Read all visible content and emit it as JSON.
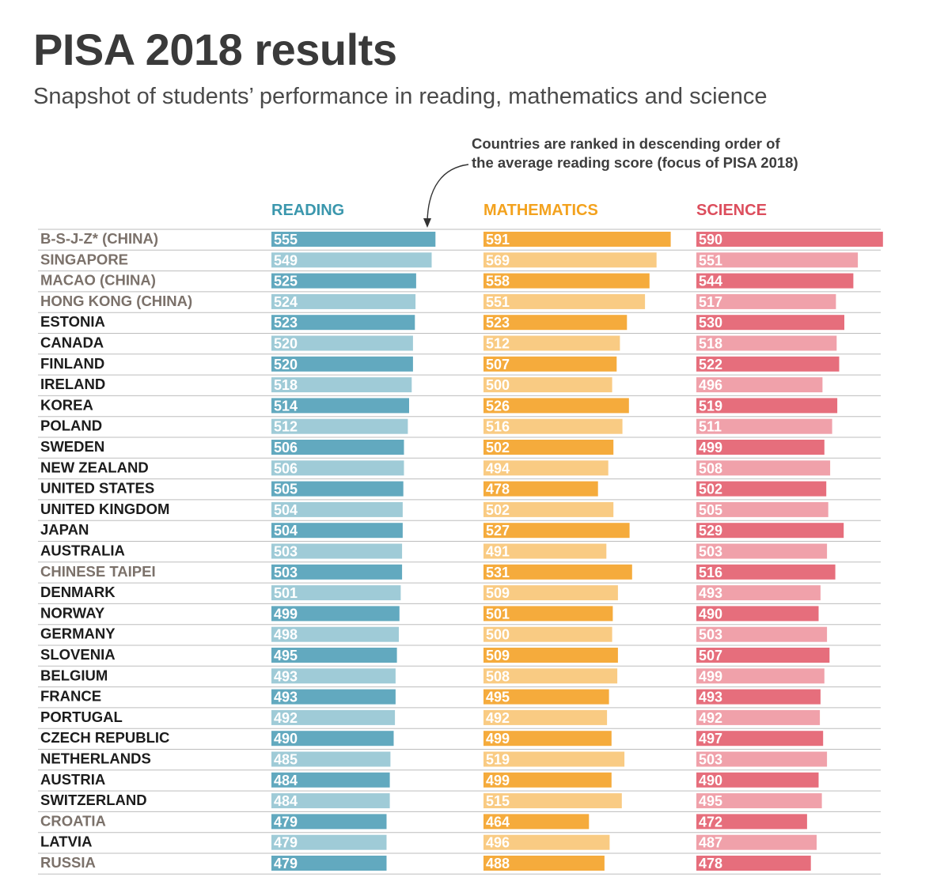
{
  "title": "PISA 2018 results",
  "subtitle": "Snapshot of students’ performance in reading, mathematics and science",
  "annotation": {
    "line1": "Countries are ranked in descending order of",
    "line2": "the average reading score (focus of PISA 2018)"
  },
  "colors": {
    "reading_dark": "#62a9bf",
    "reading_light": "#9fcbd7",
    "reading_header": "#3b97ad",
    "math_dark": "#f5ab3c",
    "math_light": "#f9cb83",
    "math_header": "#f3a21e",
    "science_dark": "#e66e7c",
    "science_light": "#f0a1aa",
    "science_header": "#dc4e5d",
    "country_black": "#1c1c1c",
    "country_gray": "#7b716a",
    "rule": "#bdbdbd"
  },
  "chart_data": {
    "type": "bar",
    "title": "PISA 2018 results",
    "subtitle": "Snapshot of students’ performance in reading, mathematics and science",
    "categories": [
      "B-S-J-Z* (CHINA)",
      "SINGAPORE",
      "MACAO (CHINA)",
      "HONG KONG (CHINA)",
      "ESTONIA",
      "CANADA",
      "FINLAND",
      "IRELAND",
      "KOREA",
      "POLAND",
      "SWEDEN",
      "NEW ZEALAND",
      "UNITED STATES",
      "UNITED KINGDOM",
      "JAPAN",
      "AUSTRALIA",
      "CHINESE TAIPEI",
      "DENMARK",
      "NORWAY",
      "GERMANY",
      "SLOVENIA",
      "BELGIUM",
      "FRANCE",
      "PORTUGAL",
      "CZECH REPUBLIC",
      "NETHERLANDS",
      "AUSTRIA",
      "SWITZERLAND",
      "CROATIA",
      "LATVIA",
      "RUSSIA"
    ],
    "gray_labels": [
      "B-S-J-Z* (CHINA)",
      "SINGAPORE",
      "MACAO (CHINA)",
      "HONG KONG (CHINA)",
      "CHINESE TAIPEI",
      "CROATIA",
      "RUSSIA"
    ],
    "series": [
      {
        "name": "READING",
        "values": [
          555,
          549,
          525,
          524,
          523,
          520,
          520,
          518,
          514,
          512,
          506,
          506,
          505,
          504,
          504,
          503,
          503,
          501,
          499,
          498,
          495,
          493,
          493,
          492,
          490,
          485,
          484,
          484,
          479,
          479,
          479
        ]
      },
      {
        "name": "MATHEMATICS",
        "values": [
          591,
          569,
          558,
          551,
          523,
          512,
          507,
          500,
          526,
          516,
          502,
          494,
          478,
          502,
          527,
          491,
          531,
          509,
          501,
          500,
          509,
          508,
          495,
          492,
          499,
          519,
          499,
          515,
          464,
          496,
          488
        ]
      },
      {
        "name": "SCIENCE",
        "values": [
          590,
          551,
          544,
          517,
          530,
          518,
          522,
          496,
          519,
          511,
          499,
          508,
          502,
          505,
          529,
          503,
          516,
          493,
          490,
          503,
          507,
          499,
          493,
          492,
          497,
          503,
          490,
          495,
          472,
          487,
          478
        ]
      }
    ]
  }
}
